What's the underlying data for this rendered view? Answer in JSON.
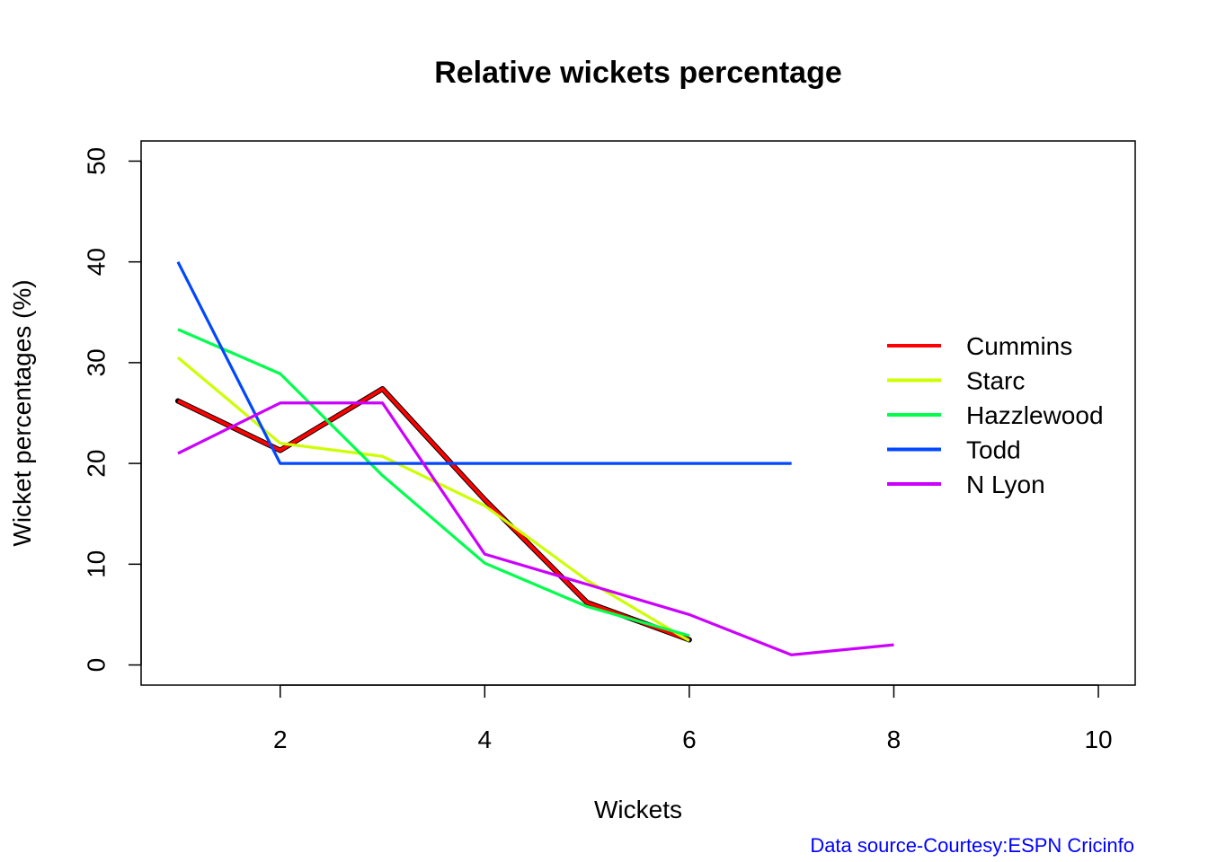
{
  "chart_data": {
    "type": "line",
    "title": "Relative wickets percentage",
    "xlabel": "Wickets",
    "ylabel": "Wicket percentages (%)",
    "xlim": [
      0.64,
      10.36
    ],
    "ylim": [
      -2,
      52
    ],
    "xticks": [
      2,
      4,
      6,
      8,
      10
    ],
    "yticks": [
      0,
      10,
      20,
      30,
      40,
      50
    ],
    "grid": false,
    "legend_position": "right",
    "series": [
      {
        "name": "Cummins",
        "color": "#FF0000",
        "outline": true,
        "x": [
          1,
          2,
          3,
          4,
          5,
          6
        ],
        "y": [
          26.2,
          21.3,
          27.4,
          16.4,
          6.2,
          2.5
        ]
      },
      {
        "name": "Starc",
        "color": "#CCFF00",
        "x": [
          1,
          2,
          3,
          4,
          5,
          6
        ],
        "y": [
          30.5,
          22.0,
          20.7,
          15.8,
          8.4,
          2.4
        ]
      },
      {
        "name": "Hazzlewood",
        "color": "#00FF4D",
        "x": [
          1,
          2,
          3,
          4,
          5,
          6
        ],
        "y": [
          33.3,
          28.9,
          18.8,
          10.1,
          5.8,
          2.9
        ]
      },
      {
        "name": "Todd",
        "color": "#0047FF",
        "x": [
          1,
          2,
          3,
          4,
          5,
          6,
          7
        ],
        "y": [
          40,
          20,
          20,
          20,
          20,
          20,
          20
        ]
      },
      {
        "name": "N Lyon",
        "color": "#CC00FF",
        "x": [
          1,
          2,
          3,
          4,
          5,
          6,
          7,
          8
        ],
        "y": [
          21,
          26,
          26,
          11,
          8,
          5,
          1,
          2
        ]
      }
    ],
    "annotation": "Data source-Courtesy:ESPN Cricinfo",
    "annotation_color": "#0000FF"
  }
}
